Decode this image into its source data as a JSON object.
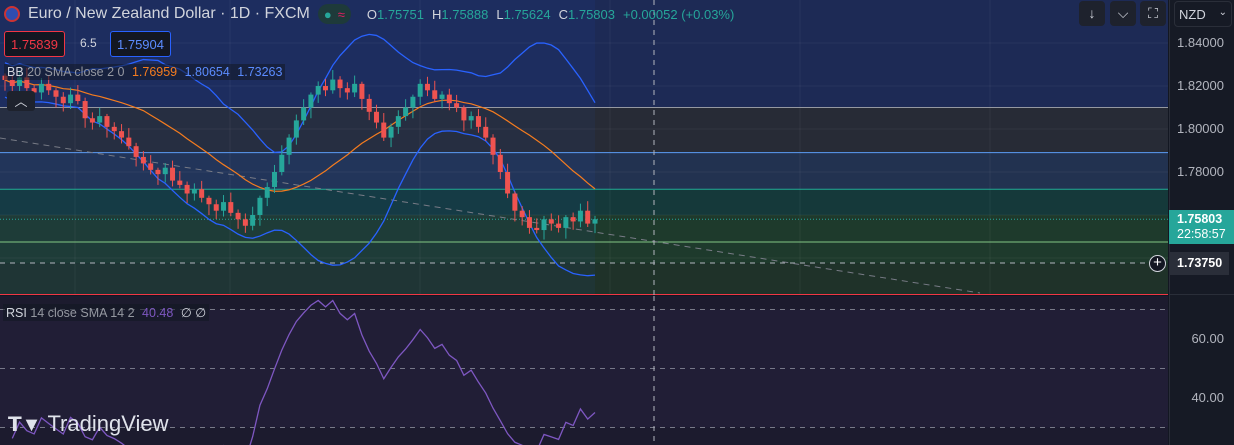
{
  "header": {
    "title": "Euro / New Zealand Dollar · 1D · FXCM",
    "ohlc": {
      "o_label": "O",
      "o": "1.75751",
      "h_label": "H",
      "h": "1.75888",
      "l_label": "L",
      "l": "1.75624",
      "c_label": "C",
      "c": "1.75803",
      "change": "+0.00052 (+0.03%)"
    }
  },
  "trade": {
    "sell": "1.75839",
    "spread": "6.5",
    "buy": "1.75904"
  },
  "bb_legend": {
    "name": "BB",
    "params": "20 SMA close 2 0",
    "basis": "1.76959",
    "upper": "1.80654",
    "lower": "1.73263"
  },
  "rsi_legend": {
    "name": "RSI",
    "params": "14 close SMA 14 2",
    "value": "40.48",
    "v2": "∅",
    "v3": "∅"
  },
  "toolbar": {
    "currency": "NZD"
  },
  "axis": {
    "price_ticks": [
      "1.84000",
      "1.82000",
      "1.80000",
      "1.78000"
    ],
    "current_price": "1.75803",
    "countdown": "22:58:57",
    "crosshair_price": "1.73750",
    "rsi_ticks": [
      "60.00",
      "40.00"
    ]
  },
  "logo": "TradingView",
  "colors": {
    "up": "#26a69a",
    "down": "#ef5350",
    "bb_basis": "#f57c1f",
    "bb_band": "#2962ff",
    "rsi": "#7e57c2"
  },
  "chart_data": {
    "type": "candlestick",
    "price_range": [
      1.725,
      1.85
    ],
    "closes": [
      1.8228,
      1.82,
      1.824,
      1.819,
      1.817,
      1.821,
      1.818,
      1.815,
      1.812,
      1.816,
      1.813,
      1.805,
      1.803,
      1.806,
      1.801,
      1.799,
      1.796,
      1.792,
      1.787,
      1.784,
      1.781,
      1.779,
      1.782,
      1.776,
      1.774,
      1.77,
      1.772,
      1.768,
      1.765,
      1.762,
      1.766,
      1.761,
      1.758,
      1.755,
      1.76,
      1.768,
      1.773,
      1.78,
      1.788,
      1.796,
      1.804,
      1.81,
      1.816,
      1.82,
      1.818,
      1.823,
      1.819,
      1.817,
      1.821,
      1.814,
      1.808,
      1.803,
      1.796,
      1.801,
      1.806,
      1.81,
      1.815,
      1.821,
      1.818,
      1.814,
      1.816,
      1.812,
      1.81,
      1.804,
      1.806,
      1.801,
      1.796,
      1.788,
      1.78,
      1.77,
      1.762,
      1.759,
      1.754,
      1.753,
      1.758,
      1.756,
      1.754,
      1.759,
      1.757,
      1.762,
      1.756,
      1.75803
    ],
    "levels": [
      1.81,
      1.789,
      1.772,
      1.76,
      1.7375,
      1.723
    ],
    "rsi_levels": [
      70,
      50,
      30
    ]
  }
}
